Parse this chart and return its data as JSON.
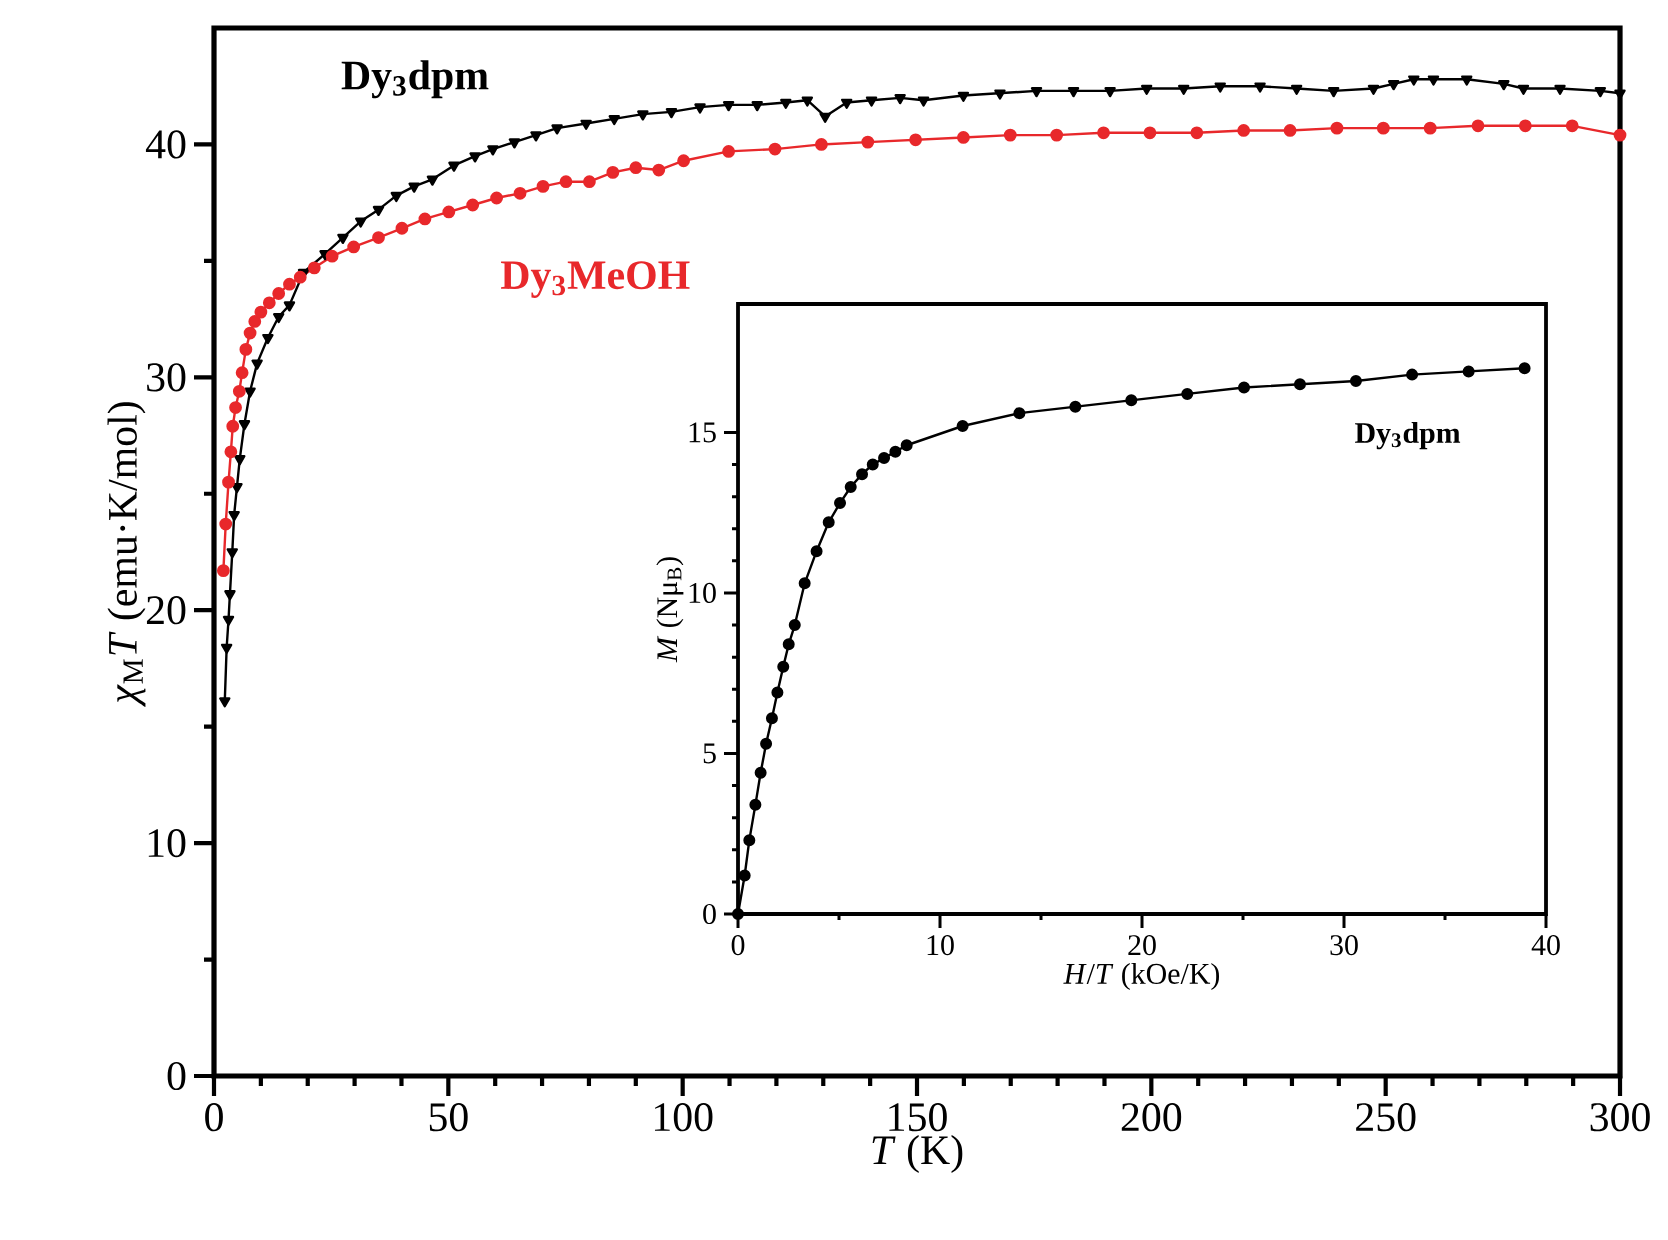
{
  "chart_data": [
    {
      "type": "line",
      "xlabel": "*T* (K)",
      "ylabel": "*χ*$_{M}$*T* (emu·K/mol)",
      "xlim": [
        0,
        300
      ],
      "ylim": [
        0,
        45
      ],
      "xticks": [
        0,
        50,
        100,
        150,
        200,
        250,
        300
      ],
      "yticks": [
        0,
        10,
        20,
        30,
        40
      ],
      "series": [
        {
          "name": "Dy$_{3}$dpm",
          "color": "#000000",
          "marker": "triangle",
          "x": [
            2.3,
            2.7,
            3.1,
            3.4,
            3.9,
            4.3,
            4.9,
            5.5,
            6.5,
            7.7,
            9.2,
            11.5,
            13.8,
            16.1,
            19.1,
            23.7,
            27.5,
            31.3,
            35.1,
            38.9,
            42.7,
            46.6,
            51.2,
            55.7,
            59.5,
            64.1,
            68.7,
            73.2,
            79.4,
            85.4,
            91.5,
            97.6,
            103.7,
            109.8,
            115.9,
            122.0,
            126.6,
            130.4,
            135.0,
            140.3,
            146.4,
            151.4,
            159.9,
            167.7,
            175.5,
            183.4,
            191.2,
            199.0,
            206.9,
            214.7,
            223.2,
            231.0,
            238.9,
            247.4,
            251.7,
            256.0,
            260.2,
            267.3,
            275.2,
            279.4,
            287.2,
            295.8,
            300
          ],
          "values": [
            16.1,
            18.4,
            19.6,
            20.7,
            22.5,
            24.1,
            25.3,
            26.5,
            28.0,
            29.4,
            30.6,
            31.7,
            32.6,
            33.1,
            34.5,
            35.3,
            36.0,
            36.7,
            37.2,
            37.8,
            38.2,
            38.5,
            39.1,
            39.5,
            39.8,
            40.1,
            40.4,
            40.7,
            40.9,
            41.1,
            41.3,
            41.4,
            41.6,
            41.7,
            41.7,
            41.8,
            41.9,
            41.2,
            41.8,
            41.9,
            42.0,
            41.9,
            42.1,
            42.2,
            42.3,
            42.3,
            42.3,
            42.4,
            42.4,
            42.5,
            42.5,
            42.4,
            42.3,
            42.4,
            42.6,
            42.8,
            42.8,
            42.8,
            42.6,
            42.4,
            42.4,
            42.3,
            42.2
          ]
        },
        {
          "name": "Dy$_{3}$MeOH",
          "color": "#e8282b",
          "marker": "circle",
          "x": [
            2.0,
            2.5,
            3.1,
            3.6,
            4.0,
            4.6,
            5.4,
            6.0,
            6.8,
            7.7,
            8.7,
            10.0,
            11.8,
            13.8,
            16.1,
            18.4,
            21.4,
            25.2,
            29.8,
            35.1,
            40.1,
            45.0,
            50.1,
            55.2,
            60.3,
            65.3,
            70.2,
            75.1,
            80.1,
            85.1,
            90.0,
            94.9,
            100.2,
            109.8,
            119.7,
            129.6,
            139.5,
            149.7,
            159.9,
            169.9,
            179.8,
            189.8,
            199.7,
            209.7,
            219.7,
            229.6,
            239.6,
            249.5,
            259.5,
            269.7,
            279.8,
            289.8,
            300
          ],
          "values": [
            21.7,
            23.7,
            25.5,
            26.8,
            27.9,
            28.7,
            29.4,
            30.2,
            31.2,
            31.9,
            32.4,
            32.8,
            33.2,
            33.6,
            34.0,
            34.3,
            34.7,
            35.2,
            35.6,
            36.0,
            36.4,
            36.8,
            37.1,
            37.4,
            37.7,
            37.9,
            38.2,
            38.4,
            38.4,
            38.8,
            39.0,
            38.9,
            39.3,
            39.7,
            39.8,
            40.0,
            40.1,
            40.2,
            40.3,
            40.4,
            40.4,
            40.5,
            40.5,
            40.5,
            40.6,
            40.6,
            40.7,
            40.7,
            40.7,
            40.8,
            40.8,
            40.8,
            40.4
          ]
        }
      ]
    },
    {
      "type": "line",
      "xlabel": "*H*/*T* (kOe/K)",
      "ylabel": "*M* (Nμ$_{B}$)",
      "xlim": [
        0,
        40
      ],
      "ylim": [
        0,
        19
      ],
      "xticks": [
        0,
        10,
        20,
        30,
        40
      ],
      "yticks": [
        0,
        5,
        10,
        15
      ],
      "series": [
        {
          "name": "Dy$_{3}$dpm",
          "color": "#000000",
          "marker": "circle",
          "x": [
            0,
            0.33,
            0.56,
            0.86,
            1.12,
            1.39,
            1.68,
            1.95,
            2.24,
            2.51,
            2.81,
            3.3,
            3.89,
            4.49,
            5.05,
            5.58,
            6.14,
            6.67,
            7.23,
            7.79,
            8.35,
            11.12,
            13.93,
            16.7,
            19.47,
            22.24,
            25.05,
            27.82,
            30.59,
            33.37,
            36.17,
            38.94
          ],
          "values": [
            0,
            1.2,
            2.3,
            3.4,
            4.4,
            5.3,
            6.1,
            6.9,
            7.7,
            8.4,
            9.0,
            10.3,
            11.3,
            12.2,
            12.8,
            13.3,
            13.7,
            14.0,
            14.2,
            14.4,
            14.6,
            15.2,
            15.6,
            15.8,
            16.0,
            16.2,
            16.4,
            16.5,
            16.6,
            16.8,
            16.9,
            17.0
          ]
        }
      ]
    }
  ]
}
